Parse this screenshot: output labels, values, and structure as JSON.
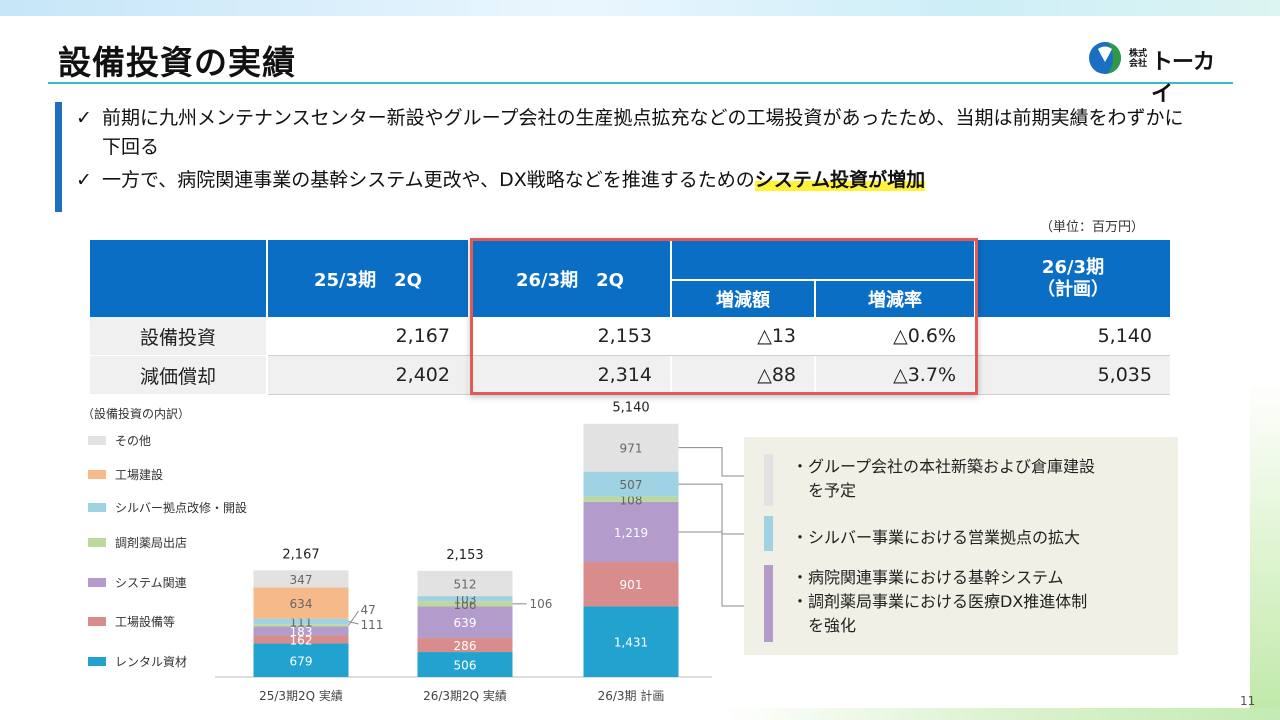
{
  "header": {
    "title": "設備投資の実績"
  },
  "logo": {
    "small_text": "株式会社",
    "name": "トーカイ"
  },
  "bullets": [
    {
      "check": "✓",
      "text": "前期に九州メンテナンスセンター新設やグループ会社の生産拠点拡充などの工場投資があったため、当期は前期実績をわずかに下回る",
      "highlight": ""
    },
    {
      "check": "✓",
      "text": "一方で、病院関連事業の基幹システム更改や、DX戦略などを推進するための",
      "highlight": "システム投資が増加"
    }
  ],
  "unit_note": "（単位：百万円）",
  "table": {
    "headers": {
      "col1": "25/3期　2Q",
      "col2": "26/3期　2Q",
      "col3": "増減額",
      "col4": "増減率",
      "col5_line1": "26/3期",
      "col5_line2": "（計画）"
    },
    "rows": [
      {
        "label": "設備投資",
        "v1": "2,167",
        "v2": "2,153",
        "diff": "△13",
        "rate": "△0.6%",
        "plan": "5,140"
      },
      {
        "label": "減価償却",
        "v1": "2,402",
        "v2": "2,314",
        "diff": "△88",
        "rate": "△3.7%",
        "plan": "5,035"
      }
    ]
  },
  "chart_data": {
    "type": "bar",
    "stacked": true,
    "note": "（設備投資の内訳）",
    "categories": [
      "25/3期2Q 実績",
      "26/3期2Q 実績",
      "26/3期 計画"
    ],
    "totals": [
      "2,167",
      "2,153",
      "5,140"
    ],
    "series": [
      {
        "name": "レンタル資材",
        "color": "#22a3cf",
        "values": [
          679,
          506,
          1431
        ]
      },
      {
        "name": "工場設備等",
        "color": "#d98c8c",
        "values": [
          162,
          286,
          901
        ]
      },
      {
        "name": "システム関連",
        "color": "#b39ccc",
        "values": [
          183,
          639,
          1219
        ]
      },
      {
        "name": "調剤薬局出店",
        "color": "#bcd99b",
        "values": [
          47,
          106,
          108
        ]
      },
      {
        "name": "シルバー拠点改修・開設",
        "color": "#9fd2e3",
        "values": [
          111,
          103,
          507
        ]
      },
      {
        "name": "工場建設",
        "color": "#f6b98a",
        "values": [
          634,
          0,
          0
        ]
      },
      {
        "name": "その他",
        "color": "#e2e2e2",
        "values": [
          347,
          512,
          971
        ]
      }
    ],
    "callouts": [
      "47",
      "111",
      "106"
    ],
    "legend_position": "left",
    "grid": false
  },
  "notes": [
    {
      "lines": [
        "・グループ会社の本社新築および倉庫建設",
        "　を予定"
      ],
      "color": "#e2e2e2"
    },
    {
      "lines": [
        "・シルバー事業における営業拠点の拡大"
      ],
      "color": "#9fd2e3"
    },
    {
      "lines": [
        "・病院関連事業における基幹システム",
        "・調剤薬局事業における医療DX推進体制",
        "　を強化"
      ],
      "color": "#b39ccc"
    }
  ],
  "page_number": "11"
}
